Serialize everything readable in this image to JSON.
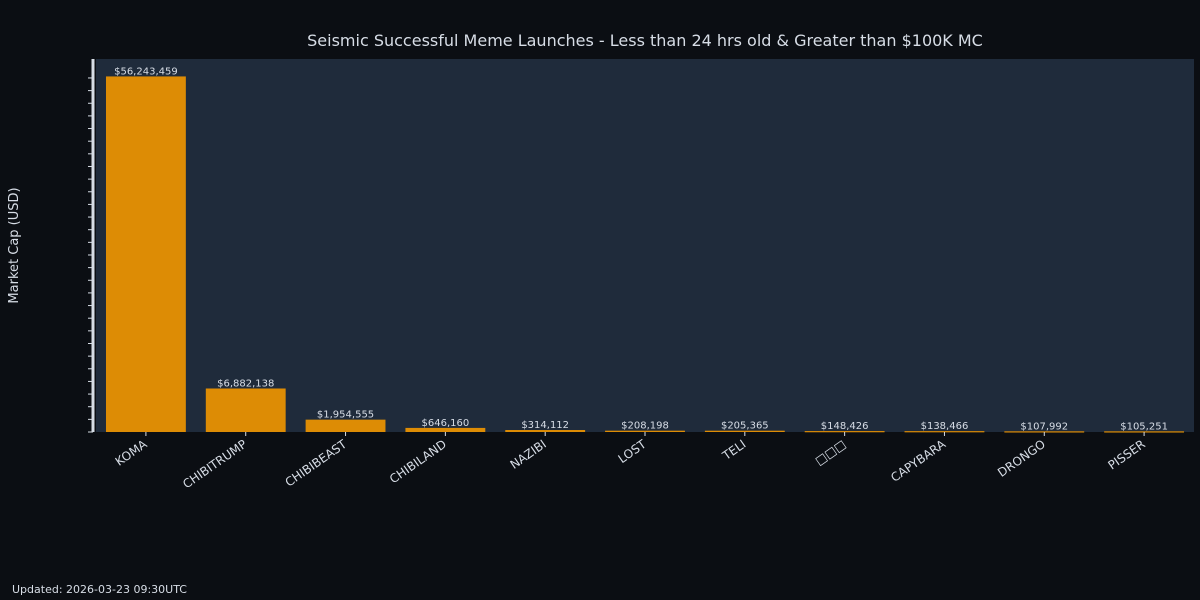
{
  "chart_data": {
    "type": "bar",
    "title": "Seismic Successful Meme Launches - Less than 24 hrs old & Greater than $100K MC",
    "xlabel": "",
    "ylabel": "Market Cap (USD)",
    "categories": [
      "KOMA",
      "CHIBITRUMP",
      "CHIBIBEAST",
      "CHIBILAND",
      "NAZIBI",
      "LOST",
      "TELI",
      "□□□",
      "CAPYBARA",
      "DRONGO",
      "PISSER"
    ],
    "values": [
      56243459,
      6882138,
      1954555,
      646160,
      314112,
      208198,
      205365,
      148426,
      138466,
      107992,
      105251
    ],
    "value_labels": [
      "$56,243,459",
      "$6,882,138",
      "$1,954,555",
      "$646,160",
      "$314,112",
      "$208,198",
      "$205,365",
      "$148,426",
      "$138,466",
      "$107,992",
      "$105,251"
    ],
    "ylim": [
      0,
      59000000
    ],
    "grid": false,
    "legend": "none",
    "colors": {
      "bar": "#dd8c05",
      "plot_bg": "#1f2b3b",
      "page_bg": "#0b0e13",
      "text": "#d7dde6"
    }
  },
  "footer": {
    "updated": "Updated: 2026-03-23 09:30UTC"
  }
}
